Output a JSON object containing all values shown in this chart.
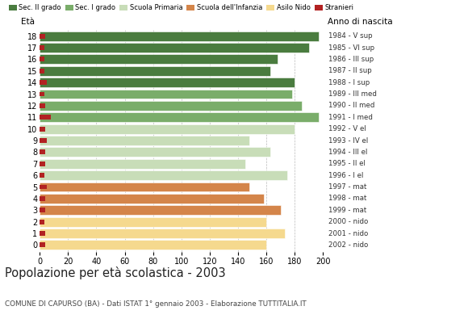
{
  "ages": [
    18,
    17,
    16,
    15,
    14,
    13,
    12,
    11,
    10,
    9,
    8,
    7,
    6,
    5,
    4,
    3,
    2,
    1,
    0
  ],
  "values": [
    197,
    190,
    168,
    163,
    180,
    178,
    185,
    197,
    180,
    148,
    163,
    145,
    175,
    148,
    158,
    170,
    160,
    173,
    160
  ],
  "stranieri": [
    4,
    3,
    3,
    3,
    5,
    3,
    4,
    8,
    4,
    5,
    4,
    4,
    3,
    5,
    4,
    4,
    3,
    4,
    4
  ],
  "bar_colors": {
    "18": "#4a7c3f",
    "17": "#4a7c3f",
    "16": "#4a7c3f",
    "15": "#4a7c3f",
    "14": "#4a7c3f",
    "13": "#7aad6a",
    "12": "#7aad6a",
    "11": "#7aad6a",
    "10": "#c8ddb8",
    "9": "#c8ddb8",
    "8": "#c8ddb8",
    "7": "#c8ddb8",
    "6": "#c8ddb8",
    "5": "#d4854a",
    "4": "#d4854a",
    "3": "#d4854a",
    "2": "#f5d98e",
    "1": "#f5d98e",
    "0": "#f5d98e"
  },
  "right_labels": {
    "18": "1984 - V sup",
    "17": "1985 - VI sup",
    "16": "1986 - III sup",
    "15": "1987 - II sup",
    "14": "1988 - I sup",
    "13": "1989 - III med",
    "12": "1990 - II med",
    "11": "1991 - I med",
    "10": "1992 - V el",
    "9": "1993 - IV el",
    "8": "1994 - III el",
    "7": "1995 - II el",
    "6": "1996 - I el",
    "5": "1997 - mat",
    "4": "1998 - mat",
    "3": "1999 - mat",
    "2": "2000 - nido",
    "1": "2001 - nido",
    "0": "2002 - nido"
  },
  "legend_labels": [
    "Sec. II grado",
    "Sec. I grado",
    "Scuola Primaria",
    "Scuola dell'Infanzia",
    "Asilo Nido",
    "Stranieri"
  ],
  "legend_colors": [
    "#4a7c3f",
    "#7aad6a",
    "#c8ddb8",
    "#d4854a",
    "#f5d98e",
    "#b22222"
  ],
  "title": "Popolazione per età scolastica - 2003",
  "subtitle": "COMUNE DI CAPURSO (BA) - Dati ISTAT 1° gennaio 2003 - Elaborazione TUTTITALIA.IT",
  "xlim": [
    0,
    200
  ],
  "eta_label": "Età",
  "anno_label": "Anno di nascita",
  "xticks": [
    0,
    20,
    40,
    60,
    80,
    100,
    120,
    140,
    160,
    180,
    200
  ],
  "stranieri_color": "#b22222",
  "bar_height": 0.82,
  "background_color": "#ffffff",
  "grid_color": "#bbbbbb",
  "ylim": [
    -0.6,
    18.6
  ]
}
